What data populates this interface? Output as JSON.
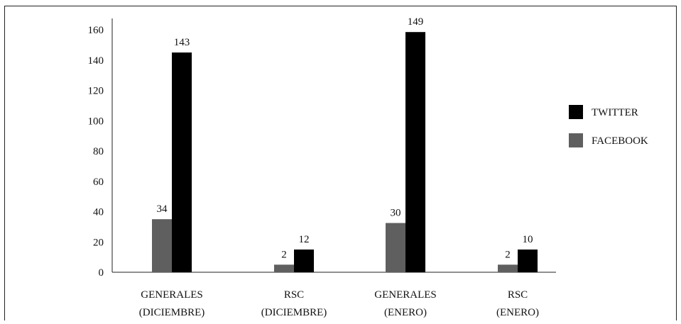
{
  "chart_data": {
    "type": "bar",
    "title": "",
    "xlabel": "",
    "ylabel": "",
    "ylim": [
      0,
      160
    ],
    "yticks": [
      0,
      20,
      40,
      60,
      80,
      100,
      120,
      140,
      160
    ],
    "grid": false,
    "legend_position": "right",
    "categories": [
      [
        "GENERALES",
        "(DICIEMBRE)"
      ],
      [
        "RSC",
        "(DICIEMBRE)"
      ],
      [
        "GENERALES",
        "(ENERO)"
      ],
      [
        "RSC",
        "(ENERO)"
      ]
    ],
    "series": [
      {
        "name": "FACEBOOK",
        "color": "#5f5f5f",
        "values": [
          34,
          2,
          30,
          2
        ],
        "bar_values": [
          35,
          5,
          32.5,
          5
        ]
      },
      {
        "name": "TWITTER",
        "color": "#000000",
        "values": [
          143,
          12,
          149,
          10
        ],
        "bar_values": [
          145,
          15,
          158.5,
          15
        ]
      }
    ],
    "legend_order": [
      "TWITTER",
      "FACEBOOK"
    ]
  }
}
